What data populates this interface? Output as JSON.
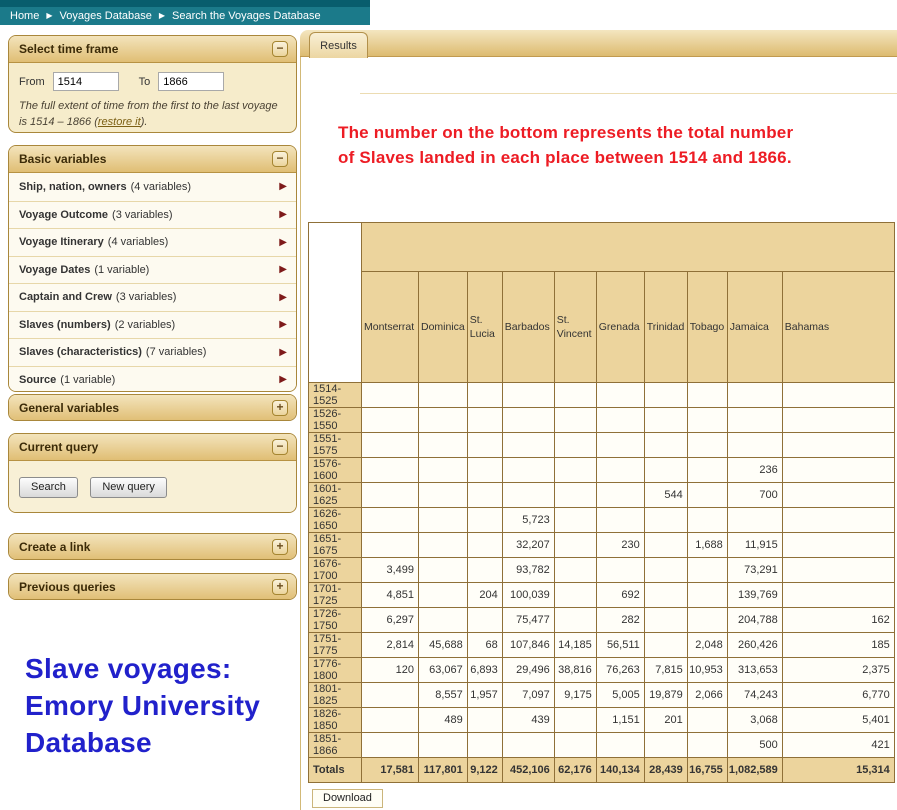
{
  "breadcrumb": {
    "items": [
      "Home",
      "Voyages Database",
      "Search the Voyages Database"
    ],
    "separator": "▶"
  },
  "icons": {
    "collapse": "−",
    "expand": "+",
    "arrow_right": "▶"
  },
  "colors": {
    "teal_bar": "#1b7a8a",
    "panel_tan": "#ecd49d",
    "red_note": "#ed1c24",
    "blue_note": "#2121cb"
  },
  "sidebar": {
    "time_frame": {
      "title": "Select time frame",
      "from_label": "From",
      "from_value": "1514",
      "to_label": "To",
      "to_value": "1866",
      "note_line1": "The full extent of time from the first to the last voyage",
      "note_line2_prefix": "is 1514 – 1866 (",
      "note_link": "restore it",
      "note_line2_suffix": ")."
    },
    "basic_variables": {
      "title": "Basic variables",
      "items": [
        {
          "name": "Ship, nation, owners",
          "count": "(4 variables)"
        },
        {
          "name": "Voyage Outcome",
          "count": "(3 variables)"
        },
        {
          "name": "Voyage Itinerary",
          "count": "(4 variables)"
        },
        {
          "name": "Voyage Dates",
          "count": "(1 variable)"
        },
        {
          "name": "Captain and Crew",
          "count": "(3 variables)"
        },
        {
          "name": "Slaves (numbers)",
          "count": "(2 variables)"
        },
        {
          "name": "Slaves (characteristics)",
          "count": "(7 variables)"
        },
        {
          "name": "Source",
          "count": "(1 variable)"
        }
      ]
    },
    "general_variables": {
      "title": "General variables"
    },
    "current_query": {
      "title": "Current query",
      "search_label": "Search",
      "new_query_label": "New query"
    },
    "create_link": {
      "title": "Create a link"
    },
    "previous_queries": {
      "title": "Previous queries"
    }
  },
  "annotations": {
    "red_line1": "The number on the bottom represents the total number",
    "red_line2": "of Slaves landed in each place between 1514 and 1866.",
    "blue_lines": [
      "Slave voyages:",
      "Emory University",
      "Database"
    ]
  },
  "results": {
    "tab_label": "Results",
    "download_label": "Download",
    "table": {
      "columns": [
        "Montserrat",
        "Dominica",
        "St. Lucia",
        "Barbados",
        "St. Vincent",
        "Grenada",
        "Trinidad",
        "Tobago",
        "Jamaica",
        "Bahamas"
      ],
      "rows": [
        {
          "label": "1514-1525",
          "values": [
            "",
            "",
            "",
            "",
            "",
            "",
            "",
            "",
            "",
            ""
          ]
        },
        {
          "label": "1526-1550",
          "values": [
            "",
            "",
            "",
            "",
            "",
            "",
            "",
            "",
            "",
            ""
          ]
        },
        {
          "label": "1551-1575",
          "values": [
            "",
            "",
            "",
            "",
            "",
            "",
            "",
            "",
            "",
            ""
          ]
        },
        {
          "label": "1576-1600",
          "values": [
            "",
            "",
            "",
            "",
            "",
            "",
            "",
            "",
            "236",
            ""
          ]
        },
        {
          "label": "1601-1625",
          "values": [
            "",
            "",
            "",
            "",
            "",
            "",
            "544",
            "",
            "700",
            ""
          ]
        },
        {
          "label": "1626-1650",
          "values": [
            "",
            "",
            "",
            "5,723",
            "",
            "",
            "",
            "",
            "",
            ""
          ]
        },
        {
          "label": "1651-1675",
          "values": [
            "",
            "",
            "",
            "32,207",
            "",
            "230",
            "",
            "1,688",
            "11,915",
            ""
          ]
        },
        {
          "label": "1676-1700",
          "values": [
            "3,499",
            "",
            "",
            "93,782",
            "",
            "",
            "",
            "",
            "73,291",
            ""
          ]
        },
        {
          "label": "1701-1725",
          "values": [
            "4,851",
            "",
            "204",
            "100,039",
            "",
            "692",
            "",
            "",
            "139,769",
            ""
          ]
        },
        {
          "label": "1726-1750",
          "values": [
            "6,297",
            "",
            "",
            "75,477",
            "",
            "282",
            "",
            "",
            "204,788",
            "162"
          ]
        },
        {
          "label": "1751-1775",
          "values": [
            "2,814",
            "45,688",
            "68",
            "107,846",
            "14,185",
            "56,511",
            "",
            "2,048",
            "260,426",
            "185"
          ]
        },
        {
          "label": "1776-1800",
          "values": [
            "120",
            "63,067",
            "6,893",
            "29,496",
            "38,816",
            "76,263",
            "7,815",
            "10,953",
            "313,653",
            "2,375"
          ]
        },
        {
          "label": "1801-1825",
          "values": [
            "",
            "8,557",
            "1,957",
            "7,097",
            "9,175",
            "5,005",
            "19,879",
            "2,066",
            "74,243",
            "6,770"
          ]
        },
        {
          "label": "1826-1850",
          "values": [
            "",
            "489",
            "",
            "439",
            "",
            "1,151",
            "201",
            "",
            "3,068",
            "5,401"
          ]
        },
        {
          "label": "1851-1866",
          "values": [
            "",
            "",
            "",
            "",
            "",
            "",
            "",
            "",
            "500",
            "421"
          ]
        }
      ],
      "totals": {
        "label": "Totals",
        "values": [
          "17,581",
          "117,801",
          "9,122",
          "452,106",
          "62,176",
          "140,134",
          "28,439",
          "16,755",
          "1,082,589",
          "15,314"
        ]
      }
    }
  }
}
